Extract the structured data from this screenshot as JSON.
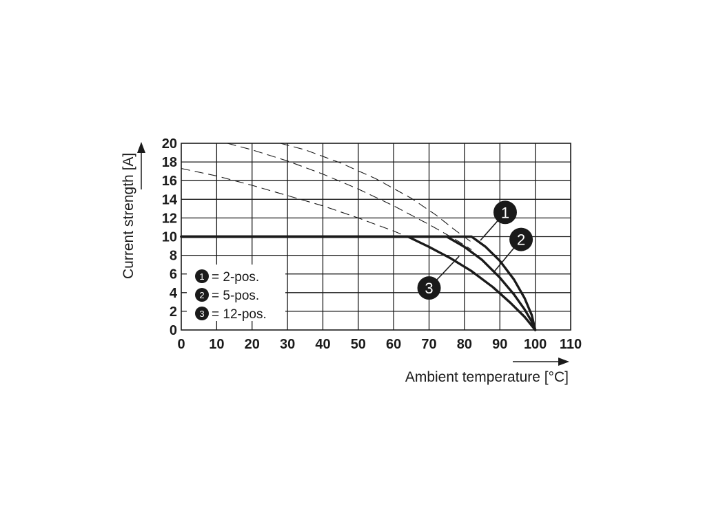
{
  "chart_data": {
    "type": "line",
    "title": "",
    "xlabel": "Ambient temperature [°C]",
    "ylabel": "Current strength [A]",
    "xlim": [
      0,
      110
    ],
    "ylim": [
      0,
      20
    ],
    "x_ticks": [
      0,
      10,
      20,
      30,
      40,
      50,
      60,
      70,
      80,
      90,
      100,
      110
    ],
    "y_ticks": [
      0,
      2,
      4,
      6,
      8,
      10,
      12,
      14,
      16,
      18,
      20
    ],
    "x_tick_labels": [
      "0",
      "10",
      "20",
      "30",
      "40",
      "50",
      "60",
      "70",
      "80",
      "90",
      "100",
      "110"
    ],
    "y_tick_labels": [
      "0",
      "2",
      "4",
      "6",
      "8",
      "10",
      "12",
      "14",
      "16",
      "18",
      "20"
    ],
    "grid": true,
    "legend_position": "bottom-left",
    "line_color": "#1a1a1a",
    "series": [
      {
        "name": "2-pos.",
        "marker": "1",
        "style": "solid",
        "points": [
          [
            0,
            10
          ],
          [
            82,
            10
          ],
          [
            86,
            8.9
          ],
          [
            90,
            7.4
          ],
          [
            94,
            5.4
          ],
          [
            97,
            3.4
          ],
          [
            99,
            1.6
          ],
          [
            100,
            0
          ]
        ],
        "dashed_points": [
          [
            13,
            20
          ],
          [
            20,
            19.3
          ],
          [
            30,
            18.1
          ],
          [
            40,
            16.7
          ],
          [
            50,
            15.1
          ],
          [
            60,
            13.3
          ],
          [
            70,
            11.3
          ],
          [
            77,
            9.8
          ],
          [
            82,
            8.6
          ]
        ]
      },
      {
        "name": "5-pos.",
        "marker": "2",
        "style": "solid",
        "points": [
          [
            0,
            10
          ],
          [
            75,
            10
          ],
          [
            80,
            8.9
          ],
          [
            85,
            7.5
          ],
          [
            90,
            5.6
          ],
          [
            94,
            3.8
          ],
          [
            97,
            2.2
          ],
          [
            99,
            0.9
          ],
          [
            100,
            0
          ]
        ],
        "dashed_points": [
          [
            28,
            20
          ],
          [
            35,
            19.3
          ],
          [
            45,
            17.9
          ],
          [
            55,
            16.2
          ],
          [
            65,
            14.1
          ],
          [
            72,
            12.3
          ],
          [
            77,
            10.8
          ],
          [
            82,
            9.4
          ]
        ]
      },
      {
        "name": "12-pos.",
        "marker": "3",
        "style": "solid",
        "points": [
          [
            0,
            10
          ],
          [
            64,
            10
          ],
          [
            70,
            8.9
          ],
          [
            76,
            7.7
          ],
          [
            82,
            6.3
          ],
          [
            88,
            4.6
          ],
          [
            93,
            2.9
          ],
          [
            97,
            1.4
          ],
          [
            100,
            0
          ]
        ],
        "dashed_points": [
          [
            0,
            17.3
          ],
          [
            10,
            16.5
          ],
          [
            20,
            15.5
          ],
          [
            30,
            14.4
          ],
          [
            40,
            13.3
          ],
          [
            50,
            12.0
          ],
          [
            60,
            10.6
          ],
          [
            65,
            9.8
          ],
          [
            70,
            8.9
          ]
        ]
      }
    ],
    "legend": [
      {
        "marker": "1",
        "text": "= 2-pos."
      },
      {
        "marker": "2",
        "text": "= 5-pos."
      },
      {
        "marker": "3",
        "text": "= 12-pos."
      }
    ],
    "callouts": [
      {
        "marker": "1",
        "label_at": [
          91.5,
          12.6
        ],
        "line_to": [
          84.5,
          9.6
        ]
      },
      {
        "marker": "2",
        "label_at": [
          96,
          9.7
        ],
        "line_to": [
          88.5,
          6.3
        ]
      },
      {
        "marker": "3",
        "label_at": [
          70,
          4.5
        ],
        "line_to": [
          78.5,
          7.9
        ]
      }
    ]
  }
}
